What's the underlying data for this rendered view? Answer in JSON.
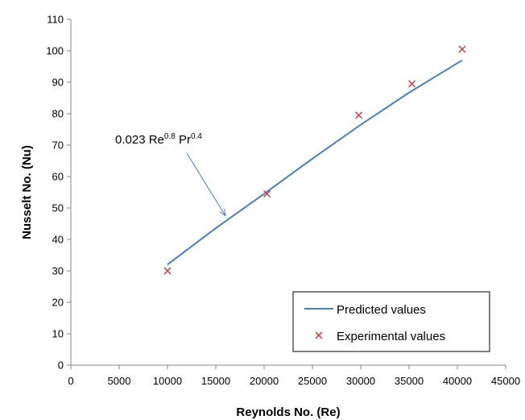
{
  "chart_data": {
    "type": "scatter",
    "xlabel": "Reynolds No. (Re)",
    "ylabel": "Nusselt No. (Nu)",
    "xlim": [
      0,
      45000
    ],
    "ylim": [
      0,
      110
    ],
    "x_ticks": [
      0,
      5000,
      10000,
      15000,
      20000,
      25000,
      30000,
      35000,
      40000,
      45000
    ],
    "y_ticks": [
      0,
      10,
      20,
      30,
      40,
      50,
      60,
      70,
      80,
      90,
      100,
      110
    ],
    "grid": false,
    "legend_position": "bottom-right",
    "series": [
      {
        "name": "Predicted values",
        "kind": "line",
        "color": "#4a7ebb",
        "x": [
          10000,
          15000,
          20000,
          25000,
          30000,
          35000,
          40500
        ],
        "y": [
          32,
          43.6,
          54.5,
          65.7,
          76.5,
          86.7,
          97
        ]
      },
      {
        "name": "Experimental values",
        "kind": "marker",
        "marker": "x",
        "color": "#c0504d",
        "x": [
          10000,
          20300,
          29800,
          35300,
          40500
        ],
        "y": [
          30,
          54.5,
          79.5,
          89.5,
          100.5
        ]
      }
    ],
    "annotation": {
      "base": "0.023 Re",
      "exp1": "0.8",
      "mid": " Pr",
      "exp2": "0.4",
      "arrow_to": {
        "x": 16000,
        "y": 47.5
      }
    }
  }
}
